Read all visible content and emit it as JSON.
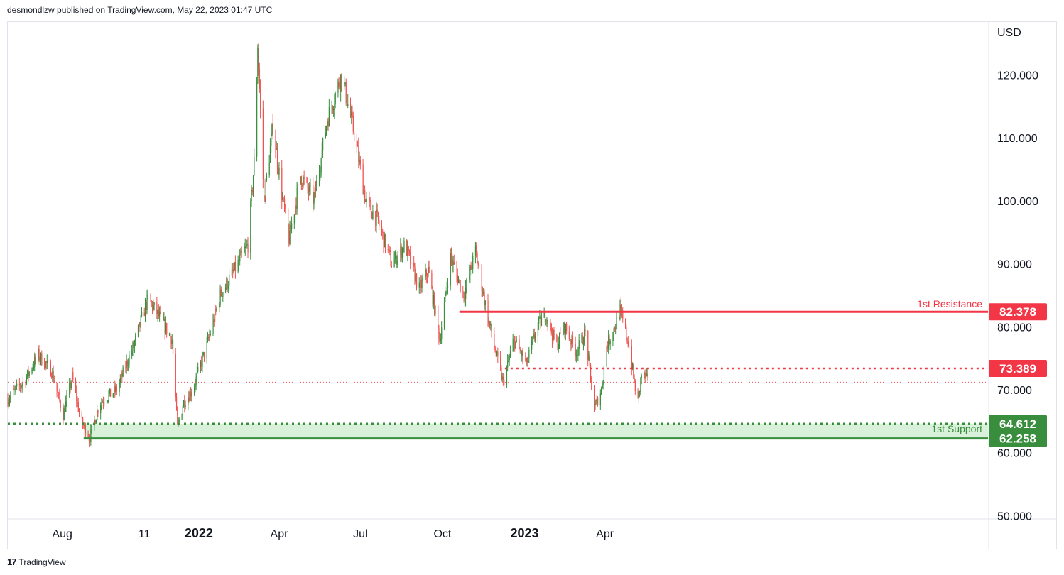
{
  "header": {
    "publisher_text": "desmondlzw published on TradingView.com, May 22, 2023 01:47 UTC"
  },
  "footer": {
    "brand": "TradingView"
  },
  "chart_data": {
    "type": "candlestick",
    "currency": "USD",
    "ylim": [
      48,
      130
    ],
    "y_ticks": [
      {
        "value": 120,
        "label": "120.000"
      },
      {
        "value": 110,
        "label": "110.000"
      },
      {
        "value": 100,
        "label": "100.000"
      },
      {
        "value": 90,
        "label": "90.000"
      },
      {
        "value": 80,
        "label": "80.000"
      },
      {
        "value": 70,
        "label": "70.000"
      },
      {
        "value": 60,
        "label": "60.000"
      },
      {
        "value": 50,
        "label": "50.000"
      }
    ],
    "x_ticks": [
      {
        "date": "2021-08-01",
        "label": "Aug",
        "bold": false
      },
      {
        "date": "2021-11-01",
        "label": "11",
        "bold": false
      },
      {
        "date": "2022-01-01",
        "label": "2022",
        "bold": true
      },
      {
        "date": "2022-04-01",
        "label": "Apr",
        "bold": false
      },
      {
        "date": "2022-07-01",
        "label": "Jul",
        "bold": false
      },
      {
        "date": "2022-10-01",
        "label": "Oct",
        "bold": false
      },
      {
        "date": "2023-01-01",
        "label": "2023",
        "bold": true
      },
      {
        "date": "2023-04-01",
        "label": "Apr",
        "bold": false
      }
    ],
    "price_path": [
      [
        "2021-06-01",
        68.5
      ],
      [
        "2021-06-20",
        71.5
      ],
      [
        "2021-07-05",
        75.5
      ],
      [
        "2021-07-20",
        73.0
      ],
      [
        "2021-08-02",
        66.0
      ],
      [
        "2021-08-12",
        72.0
      ],
      [
        "2021-08-22",
        65.0
      ],
      [
        "2021-09-01",
        62.5
      ],
      [
        "2021-09-12",
        68.0
      ],
      [
        "2021-10-01",
        70.0
      ],
      [
        "2021-10-20",
        77.0
      ],
      [
        "2021-11-05",
        84.5
      ],
      [
        "2021-11-20",
        81.0
      ],
      [
        "2021-12-02",
        78.0
      ],
      [
        "2021-12-08",
        64.0
      ],
      [
        "2021-12-15",
        68.0
      ],
      [
        "2021-12-25",
        70.0
      ],
      [
        "2022-01-10",
        77.0
      ],
      [
        "2022-01-25",
        85.0
      ],
      [
        "2022-02-10",
        89.0
      ],
      [
        "2022-02-25",
        93.0
      ],
      [
        "2022-03-05",
        108.0
      ],
      [
        "2022-03-08",
        125.0
      ],
      [
        "2022-03-15",
        100.0
      ],
      [
        "2022-03-25",
        112.0
      ],
      [
        "2022-04-05",
        100.0
      ],
      [
        "2022-04-12",
        94.0
      ],
      [
        "2022-04-25",
        104.0
      ],
      [
        "2022-05-10",
        100.0
      ],
      [
        "2022-05-25",
        113.0
      ],
      [
        "2022-06-10",
        120.0
      ],
      [
        "2022-06-25",
        110.0
      ],
      [
        "2022-07-07",
        100.0
      ],
      [
        "2022-07-20",
        97.0
      ],
      [
        "2022-08-05",
        90.0
      ],
      [
        "2022-08-20",
        93.0
      ],
      [
        "2022-09-05",
        86.0
      ],
      [
        "2022-09-15",
        89.0
      ],
      [
        "2022-09-28",
        78.0
      ],
      [
        "2022-10-10",
        91.0
      ],
      [
        "2022-10-25",
        85.0
      ],
      [
        "2022-11-07",
        92.0
      ],
      [
        "2022-11-20",
        82.0
      ],
      [
        "2022-12-01",
        75.0
      ],
      [
        "2022-12-08",
        71.0
      ],
      [
        "2022-12-20",
        78.0
      ],
      [
        "2023-01-03",
        74.0
      ],
      [
        "2023-01-15",
        80.0
      ],
      [
        "2023-01-25",
        82.0
      ],
      [
        "2023-02-05",
        77.0
      ],
      [
        "2023-02-15",
        80.0
      ],
      [
        "2023-02-28",
        76.0
      ],
      [
        "2023-03-10",
        79.0
      ],
      [
        "2023-03-20",
        67.0
      ],
      [
        "2023-03-28",
        70.0
      ],
      [
        "2023-04-03",
        77.0
      ],
      [
        "2023-04-12",
        80.0
      ],
      [
        "2023-04-18",
        82.5
      ],
      [
        "2023-04-28",
        77.0
      ],
      [
        "2023-05-04",
        71.0
      ],
      [
        "2023-05-08",
        68.0
      ],
      [
        "2023-05-12",
        72.5
      ],
      [
        "2023-05-20",
        71.2
      ]
    ],
    "last_price": 71.2,
    "levels": [
      {
        "value": 82.378,
        "label": "82.378",
        "annotation": "1st Resistance",
        "color": "#f23645",
        "style": "solid",
        "from": "2022-10-20"
      },
      {
        "value": 73.389,
        "label": "73.389",
        "annotation": "",
        "color": "#f23645",
        "style": "dotted",
        "from": "2022-12-10"
      },
      {
        "value": 64.612,
        "label": "64.612",
        "annotation": "1st Support",
        "color": "#388e3c",
        "style": "dotted",
        "from": "2021-06-01"
      },
      {
        "value": 62.258,
        "label": "62.258",
        "annotation": "",
        "color": "#388e3c",
        "style": "solid",
        "from": "2021-08-25"
      }
    ],
    "support_zone": {
      "low": 62.258,
      "high": 64.612,
      "color": "#d9f0da"
    },
    "colors": {
      "up": "#26a69a",
      "up_body": "#388e3c",
      "down": "#ef5350",
      "grid": "#e0e3eb",
      "axis_text": "#131722"
    }
  }
}
